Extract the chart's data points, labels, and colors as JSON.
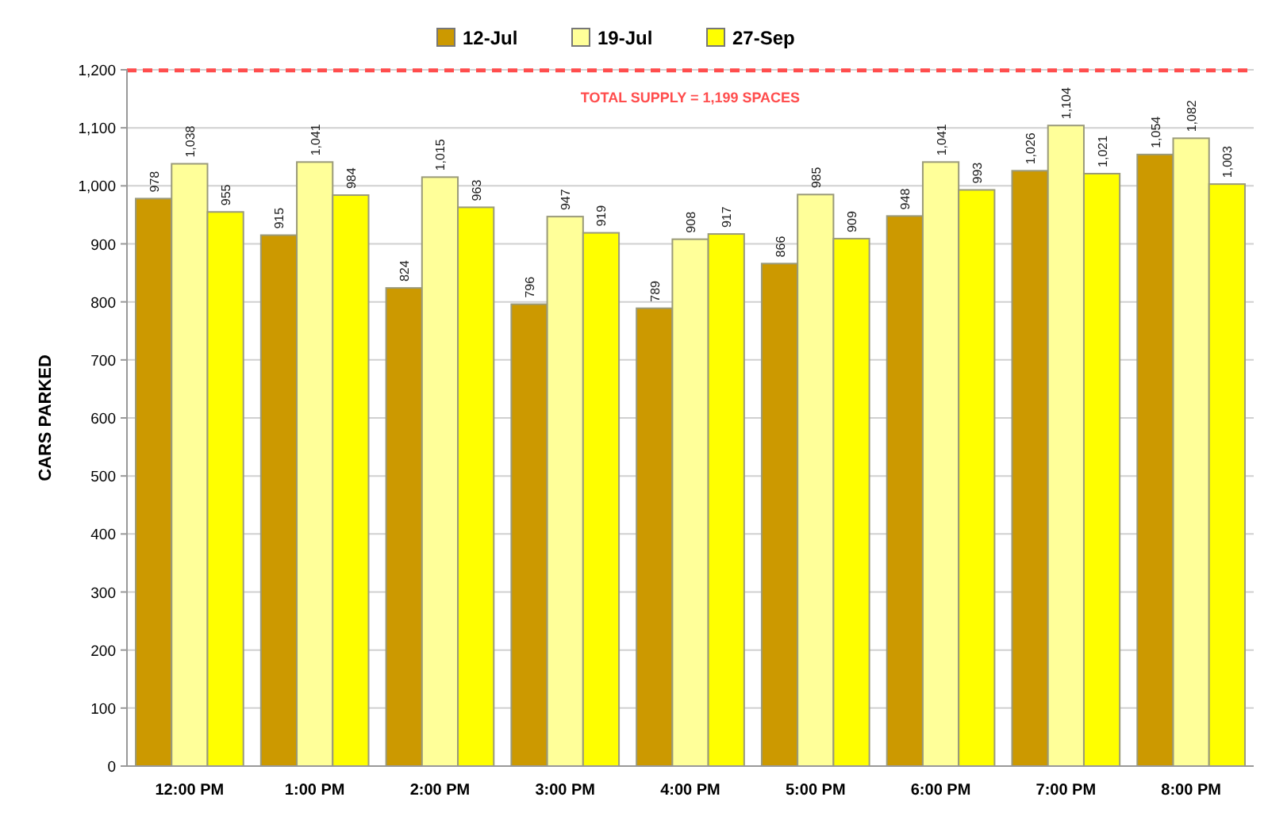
{
  "chart_data": {
    "type": "bar",
    "ylabel": "CARS PARKED",
    "categories": [
      "12:00 PM",
      "1:00 PM",
      "2:00 PM",
      "3:00 PM",
      "4:00 PM",
      "5:00 PM",
      "6:00 PM",
      "7:00 PM",
      "8:00 PM"
    ],
    "series": [
      {
        "name": "12-Jul",
        "color": "#cc9900",
        "values": [
          978,
          915,
          824,
          796,
          789,
          866,
          948,
          1026,
          1054
        ],
        "value_labels": [
          "978",
          "915",
          "824",
          "796",
          "789",
          "866",
          "948",
          "1,026",
          "1,054"
        ]
      },
      {
        "name": "19-Jul",
        "color": "#ffff99",
        "values": [
          1038,
          1041,
          1015,
          947,
          908,
          985,
          1041,
          1104,
          1082
        ],
        "value_labels": [
          "1,038",
          "1,041",
          "1,015",
          "947",
          "908",
          "985",
          "1,041",
          "1,104",
          "1,082"
        ]
      },
      {
        "name": "27-Sep",
        "color": "#ffff00",
        "values": [
          955,
          984,
          963,
          919,
          917,
          909,
          993,
          1021,
          1003
        ],
        "value_labels": [
          "955",
          "984",
          "963",
          "919",
          "917",
          "909",
          "993",
          "1,021",
          "1,003"
        ]
      }
    ],
    "ylim": [
      0,
      1200
    ],
    "yticks": [
      0,
      100,
      200,
      300,
      400,
      500,
      600,
      700,
      800,
      900,
      {
        "value": 1000,
        "label": "1,000"
      },
      {
        "value": 1100,
        "label": "1,100"
      },
      {
        "value": 1200,
        "label": "1,200"
      }
    ],
    "grid": "y",
    "legend": "top",
    "ref_lines": [
      {
        "axis": "y",
        "value": 1199,
        "label": "TOTAL SUPPLY = 1,199 SPACES",
        "color": "#ff4d4d",
        "line_style": "dashed"
      }
    ]
  }
}
